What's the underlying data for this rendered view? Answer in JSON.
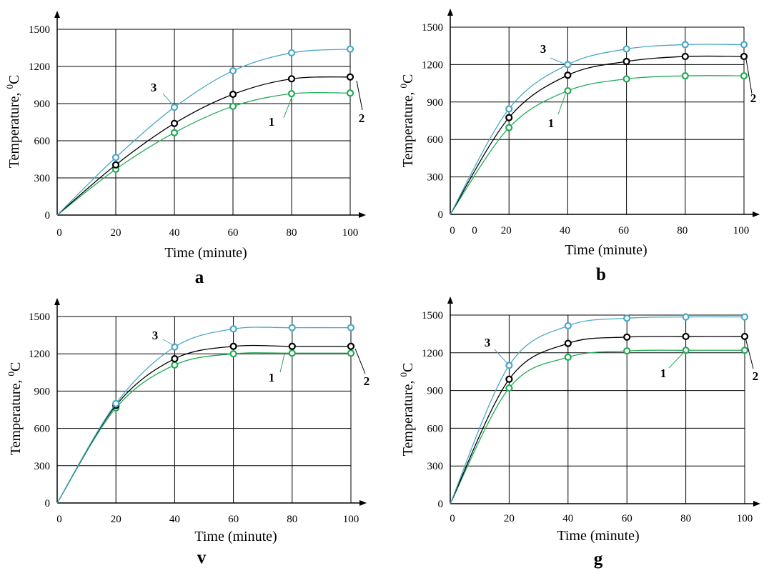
{
  "chart_data": [
    {
      "type": "line",
      "panel_label": "a",
      "xlabel": "Time (minute)",
      "ylabel": "Temperature, ",
      "ylabel_sup": "0",
      "ylabel_unit": "C",
      "x_ticks": [
        "0",
        "20",
        "40",
        "60",
        "80",
        "100"
      ],
      "y_ticks": [
        "0",
        "300",
        "600",
        "900",
        "1200",
        "1500"
      ],
      "xlim": [
        0,
        100
      ],
      "ylim": [
        0,
        1500
      ],
      "grid": true,
      "x": [
        20,
        40,
        60,
        80,
        100
      ],
      "series": [
        {
          "name": "1",
          "color": "#22aa55",
          "values": [
            370,
            665,
            878,
            980,
            985
          ]
        },
        {
          "name": "2",
          "color": "#000000",
          "values": [
            405,
            740,
            975,
            1100,
            1115
          ]
        },
        {
          "name": "3",
          "color": "#4ba7c6",
          "values": [
            465,
            870,
            1165,
            1310,
            1340
          ]
        }
      ]
    },
    {
      "type": "line",
      "panel_label": "b",
      "xlabel": "Time (minute)",
      "ylabel": "Temperature, ",
      "ylabel_sup": "0",
      "ylabel_unit": "C",
      "x_ticks": [
        "0",
        "20",
        "40",
        "60",
        "80",
        "100"
      ],
      "y_ticks": [
        "0",
        "300",
        "600",
        "900",
        "1200",
        "1500"
      ],
      "xlim": [
        0,
        100
      ],
      "ylim": [
        0,
        1500
      ],
      "grid": true,
      "x": [
        20,
        40,
        60,
        80,
        100
      ],
      "series": [
        {
          "name": "1",
          "color": "#22aa55",
          "values": [
            695,
            990,
            1085,
            1110,
            1110
          ]
        },
        {
          "name": "2",
          "color": "#000000",
          "values": [
            775,
            1115,
            1225,
            1265,
            1265
          ]
        },
        {
          "name": "3",
          "color": "#4ba7c6",
          "values": [
            845,
            1200,
            1325,
            1360,
            1360
          ]
        }
      ]
    },
    {
      "type": "line",
      "panel_label": "v",
      "xlabel": "Time (minute)",
      "ylabel": "Temperature, ",
      "ylabel_sup": "0",
      "ylabel_unit": "C",
      "x_ticks": [
        "0",
        "20",
        "40",
        "60",
        "80",
        "100"
      ],
      "y_ticks": [
        "0",
        "300",
        "600",
        "900",
        "1200",
        "1500"
      ],
      "xlim": [
        0,
        100
      ],
      "ylim": [
        0,
        1500
      ],
      "grid": true,
      "x": [
        20,
        40,
        60,
        80,
        100
      ],
      "series": [
        {
          "name": "1",
          "color": "#22aa55",
          "values": [
            765,
            1110,
            1200,
            1205,
            1205
          ]
        },
        {
          "name": "2",
          "color": "#000000",
          "values": [
            785,
            1160,
            1260,
            1260,
            1260
          ]
        },
        {
          "name": "3",
          "color": "#4ba7c6",
          "values": [
            800,
            1255,
            1400,
            1410,
            1410
          ]
        }
      ]
    },
    {
      "type": "line",
      "panel_label": "g",
      "xlabel": "Time (minute)",
      "ylabel": "Temperature, ",
      "ylabel_sup": "0",
      "ylabel_unit": "C",
      "x_ticks": [
        "0",
        "20",
        "40",
        "60",
        "80",
        "100"
      ],
      "y_ticks": [
        "0",
        "300",
        "600",
        "900",
        "1200",
        "1500"
      ],
      "xlim": [
        0,
        100
      ],
      "ylim": [
        0,
        1500
      ],
      "grid": true,
      "x": [
        20,
        40,
        60,
        80,
        100
      ],
      "series": [
        {
          "name": "1",
          "color": "#22aa55",
          "values": [
            920,
            1165,
            1215,
            1220,
            1220
          ]
        },
        {
          "name": "2",
          "color": "#000000",
          "values": [
            990,
            1275,
            1325,
            1330,
            1330
          ]
        },
        {
          "name": "3",
          "color": "#4ba7c6",
          "values": [
            1100,
            1415,
            1475,
            1485,
            1485
          ]
        }
      ]
    }
  ]
}
